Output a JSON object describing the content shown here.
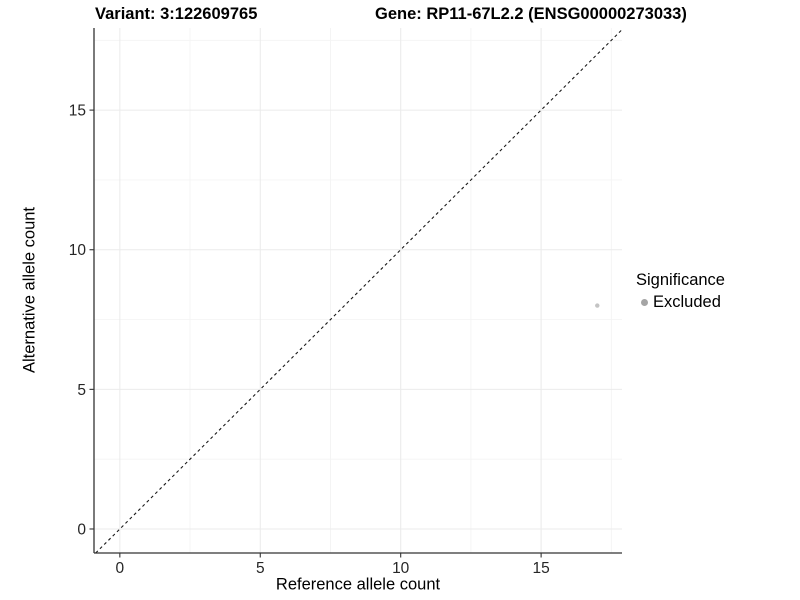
{
  "chart_data": {
    "type": "scatter",
    "title_left": "Variant: 3:122609765",
    "title_right": "Gene: RP11-67L2.2 (ENSG00000273033)",
    "xlabel": "Reference allele count",
    "ylabel": "Alternative allele count",
    "xlim": [
      -0.92,
      17.88
    ],
    "ylim": [
      -0.86,
      17.94
    ],
    "x_major_ticks": [
      0,
      5,
      10,
      15
    ],
    "y_major_ticks": [
      0,
      5,
      10,
      15
    ],
    "x_minor_ticks": [
      2.5,
      7.5,
      12.5,
      17.5
    ],
    "y_minor_ticks": [
      2.5,
      7.5,
      12.5,
      17.5
    ],
    "grid": true,
    "points": [
      {
        "x": 17,
        "y": 8,
        "series": "Excluded"
      }
    ],
    "reference_line": {
      "type": "identity",
      "slope": 1,
      "intercept": 0,
      "style": "dashed",
      "color": "#1a1a1a"
    },
    "legend": {
      "title": "Significance",
      "position": "right",
      "entries": [
        {
          "label": "Excluded",
          "color": "#a5a5a5"
        }
      ]
    },
    "colors": {
      "point": "#c4c4c4",
      "axis_line": "#333333",
      "tick_mark": "#333333",
      "tick_text": "#262626",
      "grid_major": "#ebebeb",
      "grid_minor": "#f4f4f4",
      "background": "#ffffff"
    }
  }
}
